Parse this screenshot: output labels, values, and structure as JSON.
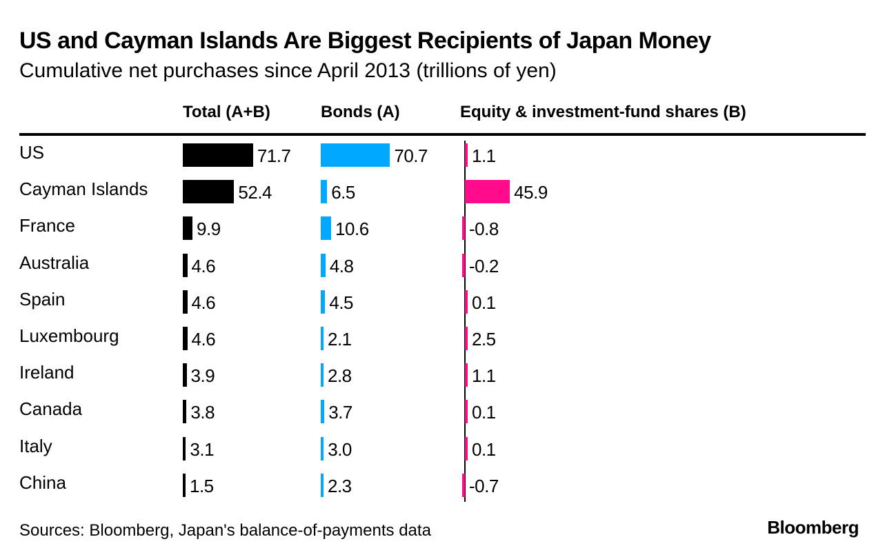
{
  "chart_data": {
    "type": "bar",
    "orientation": "horizontal",
    "title": "US and Cayman Islands Are Biggest Recipients of Japan Money",
    "subtitle": "Cumulative net purchases since April 2013 (trillions of yen)",
    "categories": [
      "US",
      "Cayman Islands",
      "France",
      "Australia",
      "Spain",
      "Luxembourg",
      "Ireland",
      "Canada",
      "Italy",
      "China"
    ],
    "series": [
      {
        "name": "Total (A+B)",
        "color": "#000000",
        "values": [
          71.7,
          52.4,
          9.9,
          4.6,
          4.6,
          4.6,
          3.9,
          3.8,
          3.1,
          1.5
        ],
        "labels": [
          "71.7",
          "52.4",
          "9.9",
          "4.6",
          "4.6",
          "4.6",
          "3.9",
          "3.8",
          "3.1",
          "1.5"
        ]
      },
      {
        "name": "Bonds (A)",
        "color": "#00a8ff",
        "values": [
          70.7,
          6.5,
          10.6,
          4.8,
          4.5,
          2.1,
          2.8,
          3.7,
          3.0,
          2.3
        ],
        "labels": [
          "70.7",
          "6.5",
          "10.6",
          "4.8",
          "4.5",
          "2.1",
          "2.8",
          "3.7",
          "3.0",
          "2.3"
        ]
      },
      {
        "name": "Equity & investment-fund shares (B)",
        "color": "#ff0b8c",
        "values": [
          1.1,
          45.9,
          -0.8,
          -0.2,
          0.1,
          2.5,
          1.1,
          0.1,
          0.1,
          -0.7
        ],
        "labels": [
          "1.1",
          "45.9",
          "-0.8",
          "-0.2",
          "0.1",
          "2.5",
          "1.1",
          "0.1",
          "0.1",
          "-0.7"
        ]
      }
    ],
    "grid": false
  },
  "footer": {
    "source": "Sources: Bloomberg, Japan's balance-of-payments data",
    "brand": "Bloomberg"
  }
}
